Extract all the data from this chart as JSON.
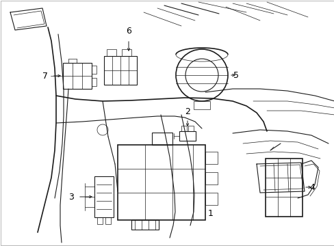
{
  "background_color": "#ffffff",
  "line_color": "#1a1a1a",
  "label_color": "#000000",
  "figure_width": 4.89,
  "figure_height": 3.6,
  "dpi": 100,
  "border_color": "#cccccc"
}
